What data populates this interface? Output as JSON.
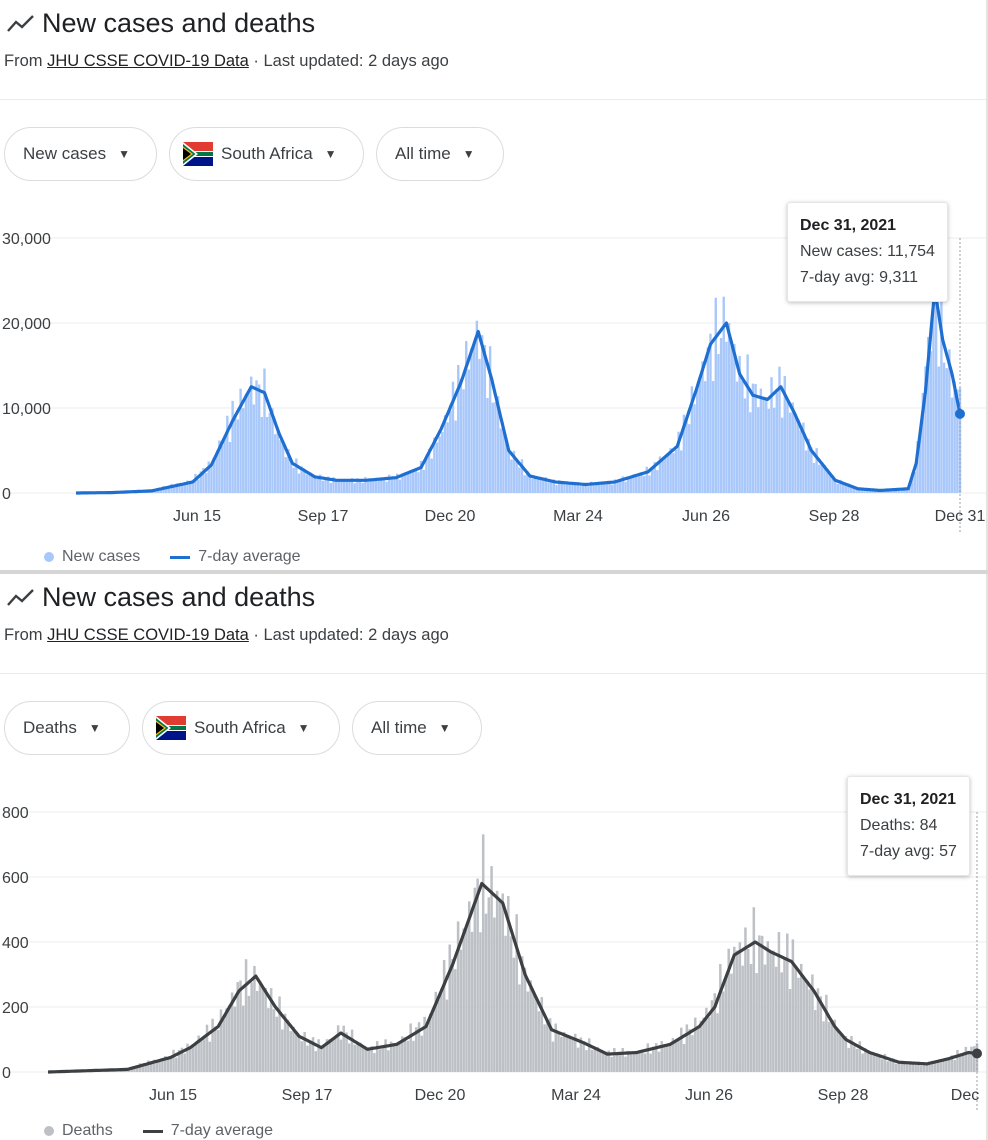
{
  "panels": [
    {
      "title": "New cases and deaths",
      "source_prefix": "From ",
      "source_link": "JHU CSSE COVID-19 Data",
      "source_suffix": " · Last updated: 2 days ago",
      "chips": {
        "metric": "New cases",
        "country": "South Africa",
        "range": "All time"
      },
      "tooltip": {
        "date": "Dec 31, 2021",
        "line1": "New cases: 11,754",
        "line2": "7-day avg: 9,311"
      },
      "legend": {
        "bars": "New cases",
        "avg": "7-day average"
      }
    },
    {
      "title": "New cases and deaths",
      "source_prefix": "From ",
      "source_link": "JHU CSSE COVID-19 Data",
      "source_suffix": " · Last updated: 2 days ago",
      "chips": {
        "metric": "Deaths",
        "country": "South Africa",
        "range": "All time"
      },
      "tooltip": {
        "date": "Dec 31, 2021",
        "line1": "Deaths: 84",
        "line2": "7-day avg: 57"
      },
      "legend": {
        "bars": "Deaths",
        "avg": "7-day average"
      }
    }
  ],
  "colors": {
    "cases_bar": "#a8c7fa",
    "cases_line": "#1f6fd1",
    "deaths_bar": "#bdc1c6",
    "deaths_line": "#3c4043",
    "grid": "#ececec",
    "axis_text": "#3c4043"
  },
  "icons": {
    "trend": "trending-line-icon",
    "flag": "south-africa-flag-icon",
    "caret": "dropdown-caret-icon"
  },
  "chart_data": [
    {
      "type": "bar",
      "title": "New cases and deaths",
      "xlabel": "",
      "ylabel": "",
      "ylim": [
        0,
        30000
      ],
      "yticks": [
        0,
        10000,
        20000,
        30000
      ],
      "ytick_labels": [
        "0",
        "10,000",
        "20,000",
        "30,000"
      ],
      "xtick_labels": [
        "Jun 15",
        "Sep 17",
        "Dec 20",
        "Mar 24",
        "Jun 26",
        "Sep 28",
        "Dec 31"
      ],
      "grid": true,
      "legend": "bottom-left",
      "x_start": "2020-03-05",
      "x_end": "2021-12-31",
      "series": [
        {
          "name": "New cases",
          "kind": "bar",
          "points": [
            [
              "2020-03-05",
              0
            ],
            [
              "2020-04-01",
              60
            ],
            [
              "2020-05-01",
              300
            ],
            [
              "2020-06-01",
              1500
            ],
            [
              "2020-06-15",
              3500
            ],
            [
              "2020-07-01",
              9000
            ],
            [
              "2020-07-15",
              12500
            ],
            [
              "2020-07-25",
              11500
            ],
            [
              "2020-08-05",
              6500
            ],
            [
              "2020-08-15",
              3500
            ],
            [
              "2020-09-01",
              1900
            ],
            [
              "2020-09-17",
              1500
            ],
            [
              "2020-10-10",
              1500
            ],
            [
              "2020-11-01",
              1800
            ],
            [
              "2020-11-20",
              3000
            ],
            [
              "2020-12-05",
              7000
            ],
            [
              "2020-12-20",
              13500
            ],
            [
              "2021-01-02",
              19000
            ],
            [
              "2021-01-12",
              13000
            ],
            [
              "2021-01-25",
              5000
            ],
            [
              "2021-02-10",
              2000
            ],
            [
              "2021-03-01",
              1300
            ],
            [
              "2021-03-24",
              1000
            ],
            [
              "2021-04-15",
              1300
            ],
            [
              "2021-05-10",
              2500
            ],
            [
              "2021-06-01",
              5500
            ],
            [
              "2021-06-15",
              12000
            ],
            [
              "2021-06-26",
              17000
            ],
            [
              "2021-07-08",
              20500
            ],
            [
              "2021-07-18",
              14000
            ],
            [
              "2021-07-28",
              12000
            ],
            [
              "2021-08-08",
              11000
            ],
            [
              "2021-08-18",
              12500
            ],
            [
              "2021-08-28",
              9500
            ],
            [
              "2021-09-10",
              5000
            ],
            [
              "2021-09-28",
              1500
            ],
            [
              "2021-10-15",
              500
            ],
            [
              "2021-11-01",
              300
            ],
            [
              "2021-11-22",
              500
            ],
            [
              "2021-11-28",
              3500
            ],
            [
              "2021-12-05",
              15000
            ],
            [
              "2021-12-12",
              22000
            ],
            [
              "2021-12-18",
              18000
            ],
            [
              "2021-12-25",
              13000
            ],
            [
              "2021-12-31",
              11754
            ]
          ]
        },
        {
          "name": "7-day average",
          "kind": "line",
          "points": [
            [
              "2020-03-05",
              0
            ],
            [
              "2020-04-01",
              50
            ],
            [
              "2020-05-01",
              250
            ],
            [
              "2020-06-01",
              1300
            ],
            [
              "2020-06-15",
              3300
            ],
            [
              "2020-07-01",
              8500
            ],
            [
              "2020-07-15",
              12500
            ],
            [
              "2020-07-25",
              11800
            ],
            [
              "2020-08-05",
              7000
            ],
            [
              "2020-08-15",
              3500
            ],
            [
              "2020-09-01",
              1900
            ],
            [
              "2020-09-17",
              1500
            ],
            [
              "2020-10-10",
              1500
            ],
            [
              "2020-11-01",
              1800
            ],
            [
              "2020-11-20",
              3000
            ],
            [
              "2020-12-05",
              7500
            ],
            [
              "2020-12-20",
              13000
            ],
            [
              "2021-01-02",
              19000
            ],
            [
              "2021-01-12",
              13500
            ],
            [
              "2021-01-25",
              5000
            ],
            [
              "2021-02-10",
              2000
            ],
            [
              "2021-03-01",
              1300
            ],
            [
              "2021-03-24",
              1000
            ],
            [
              "2021-04-15",
              1300
            ],
            [
              "2021-05-10",
              2500
            ],
            [
              "2021-06-01",
              5500
            ],
            [
              "2021-06-15",
              12000
            ],
            [
              "2021-06-26",
              17500
            ],
            [
              "2021-07-08",
              20000
            ],
            [
              "2021-07-18",
              14000
            ],
            [
              "2021-07-28",
              11500
            ],
            [
              "2021-08-08",
              11000
            ],
            [
              "2021-08-18",
              12500
            ],
            [
              "2021-08-28",
              9500
            ],
            [
              "2021-09-10",
              5000
            ],
            [
              "2021-09-28",
              1500
            ],
            [
              "2021-10-15",
              500
            ],
            [
              "2021-11-01",
              300
            ],
            [
              "2021-11-22",
              500
            ],
            [
              "2021-11-28",
              3500
            ],
            [
              "2021-12-05",
              12000
            ],
            [
              "2021-12-12",
              24000
            ],
            [
              "2021-12-18",
              18000
            ],
            [
              "2021-12-25",
              14000
            ],
            [
              "2021-12-31",
              9311
            ]
          ]
        }
      ]
    },
    {
      "type": "bar",
      "title": "New cases and deaths",
      "xlabel": "",
      "ylabel": "",
      "ylim": [
        0,
        800
      ],
      "yticks": [
        0,
        200,
        400,
        600,
        800
      ],
      "ytick_labels": [
        "0",
        "200",
        "400",
        "600",
        "800"
      ],
      "xtick_labels": [
        "Jun 15",
        "Sep 17",
        "Dec 20",
        "Mar 24",
        "Jun 26",
        "Sep 28",
        "Dec"
      ],
      "grid": true,
      "legend": "bottom-left",
      "x_start": "2020-03-05",
      "x_end": "2021-12-31",
      "series": [
        {
          "name": "Deaths",
          "kind": "bar",
          "points": [
            [
              "2020-03-05",
              0
            ],
            [
              "2020-05-01",
              10
            ],
            [
              "2020-06-01",
              50
            ],
            [
              "2020-06-15",
              80
            ],
            [
              "2020-07-05",
              150
            ],
            [
              "2020-07-20",
              260
            ],
            [
              "2020-08-01",
              290
            ],
            [
              "2020-08-15",
              200
            ],
            [
              "2020-09-01",
              110
            ],
            [
              "2020-09-17",
              80
            ],
            [
              "2020-10-01",
              130
            ],
            [
              "2020-10-20",
              70
            ],
            [
              "2020-11-10",
              90
            ],
            [
              "2020-12-01",
              150
            ],
            [
              "2020-12-20",
              350
            ],
            [
              "2021-01-10",
              580
            ],
            [
              "2021-01-25",
              520
            ],
            [
              "2021-02-10",
              300
            ],
            [
              "2021-03-01",
              130
            ],
            [
              "2021-03-24",
              90
            ],
            [
              "2021-04-10",
              60
            ],
            [
              "2021-05-01",
              60
            ],
            [
              "2021-05-25",
              90
            ],
            [
              "2021-06-15",
              150
            ],
            [
              "2021-06-26",
              220
            ],
            [
              "2021-07-10",
              370
            ],
            [
              "2021-07-25",
              400
            ],
            [
              "2021-08-05",
              370
            ],
            [
              "2021-08-20",
              350
            ],
            [
              "2021-09-05",
              250
            ],
            [
              "2021-09-20",
              150
            ],
            [
              "2021-09-28",
              100
            ],
            [
              "2021-10-15",
              60
            ],
            [
              "2021-11-05",
              30
            ],
            [
              "2021-11-25",
              25
            ],
            [
              "2021-12-10",
              40
            ],
            [
              "2021-12-25",
              70
            ],
            [
              "2021-12-31",
              84
            ]
          ]
        },
        {
          "name": "7-day average",
          "kind": "line",
          "points": [
            [
              "2020-03-05",
              0
            ],
            [
              "2020-05-01",
              8
            ],
            [
              "2020-06-01",
              45
            ],
            [
              "2020-06-15",
              75
            ],
            [
              "2020-07-05",
              140
            ],
            [
              "2020-07-20",
              250
            ],
            [
              "2020-08-01",
              295
            ],
            [
              "2020-08-15",
              200
            ],
            [
              "2020-09-01",
              110
            ],
            [
              "2020-09-17",
              75
            ],
            [
              "2020-10-01",
              120
            ],
            [
              "2020-10-20",
              70
            ],
            [
              "2020-11-10",
              85
            ],
            [
              "2020-12-01",
              140
            ],
            [
              "2020-12-20",
              330
            ],
            [
              "2021-01-10",
              580
            ],
            [
              "2021-01-25",
              520
            ],
            [
              "2021-02-10",
              300
            ],
            [
              "2021-03-01",
              130
            ],
            [
              "2021-03-24",
              90
            ],
            [
              "2021-04-10",
              55
            ],
            [
              "2021-05-01",
              60
            ],
            [
              "2021-05-25",
              85
            ],
            [
              "2021-06-15",
              140
            ],
            [
              "2021-06-26",
              200
            ],
            [
              "2021-07-10",
              360
            ],
            [
              "2021-07-25",
              400
            ],
            [
              "2021-08-05",
              370
            ],
            [
              "2021-08-20",
              340
            ],
            [
              "2021-09-05",
              250
            ],
            [
              "2021-09-20",
              140
            ],
            [
              "2021-09-28",
              100
            ],
            [
              "2021-10-15",
              60
            ],
            [
              "2021-11-05",
              30
            ],
            [
              "2021-11-25",
              25
            ],
            [
              "2021-12-10",
              40
            ],
            [
              "2021-12-25",
              60
            ],
            [
              "2021-12-31",
              57
            ]
          ]
        }
      ]
    }
  ]
}
